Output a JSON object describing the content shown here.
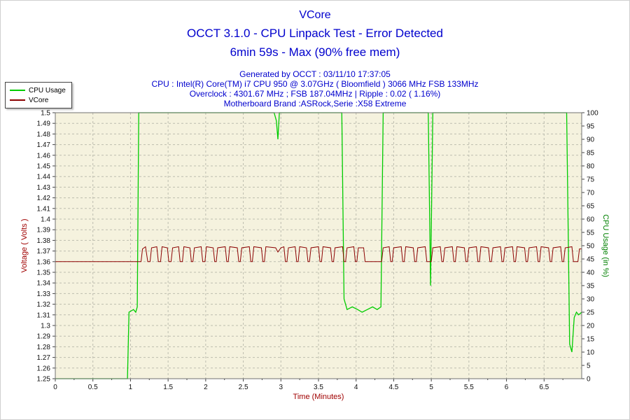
{
  "title": {
    "name": "VCore",
    "test": "OCCT 3.1.0 - CPU Linpack Test - Error Detected",
    "duration": "6min 59s - Max (90% free mem)"
  },
  "info": {
    "generated": "Generated by OCCT : 03/11/10 17:37:05",
    "cpu": "CPU : Intel(R) Core(TM) i7 CPU 950 @ 3.07GHz ( Bloomfield ) 3066 MHz FSB 133MHz",
    "overclock": "Overclock : 4301.67 MHz ; FSB 187.04MHz | Ripple : 0.02 ( 1.16%)",
    "motherboard": "Motherboard Brand :ASRock,Serie :X58 Extreme"
  },
  "legend": [
    {
      "label": "CPU Usage",
      "color": "#00cc00"
    },
    {
      "label": "VCore",
      "color": "#8b0000"
    }
  ],
  "chart_data": {
    "type": "line",
    "title": "VCore",
    "xlabel": "Time (Minutes)",
    "x_range": [
      0,
      7
    ],
    "x_tick_step": 0.5,
    "x_minor_tick_step": 0.25,
    "grid": true,
    "plot_bg": "#f5f2de",
    "grid_color": "#bdbdaf",
    "left_axis": {
      "label": "Voltage ( Volts )",
      "range": [
        1.25,
        1.5
      ],
      "tick_step": 0.01,
      "color": "#a00000"
    },
    "right_axis": {
      "label": "CPU Usage (in %)",
      "range": [
        0,
        100
      ],
      "tick_step": 5,
      "color": "#008000"
    },
    "series": [
      {
        "name": "CPU Usage",
        "axis": "right",
        "color": "#00cc00",
        "points": [
          [
            0,
            0
          ],
          [
            0.96,
            0
          ],
          [
            0.98,
            25
          ],
          [
            1.04,
            26
          ],
          [
            1.07,
            25
          ],
          [
            1.09,
            27
          ],
          [
            1.11,
            100
          ],
          [
            2.91,
            100
          ],
          [
            2.94,
            97
          ],
          [
            2.96,
            90
          ],
          [
            2.98,
            100
          ],
          [
            3.81,
            100
          ],
          [
            3.84,
            30
          ],
          [
            3.88,
            26
          ],
          [
            3.95,
            27
          ],
          [
            4.02,
            26
          ],
          [
            4.08,
            25
          ],
          [
            4.15,
            26
          ],
          [
            4.22,
            27
          ],
          [
            4.28,
            26
          ],
          [
            4.33,
            27
          ],
          [
            4.36,
            100
          ],
          [
            4.96,
            100
          ],
          [
            4.99,
            35
          ],
          [
            5.02,
            100
          ],
          [
            6.8,
            100
          ],
          [
            6.84,
            13
          ],
          [
            6.87,
            10
          ],
          [
            6.9,
            23
          ],
          [
            6.93,
            25
          ],
          [
            6.96,
            24
          ],
          [
            7.0,
            25
          ]
        ]
      },
      {
        "name": "VCore",
        "axis": "left",
        "color": "#8b0000",
        "points": [
          [
            0,
            1.36
          ],
          [
            1.14,
            1.36
          ],
          [
            1.16,
            1.372
          ],
          [
            1.2,
            1.374
          ],
          [
            1.23,
            1.36
          ],
          [
            1.26,
            1.36
          ],
          [
            1.28,
            1.373
          ],
          [
            1.35,
            1.374
          ],
          [
            1.37,
            1.36
          ],
          [
            1.4,
            1.36
          ],
          [
            1.42,
            1.374
          ],
          [
            1.49,
            1.373
          ],
          [
            1.51,
            1.36
          ],
          [
            1.54,
            1.36
          ],
          [
            1.56,
            1.373
          ],
          [
            1.64,
            1.374
          ],
          [
            1.66,
            1.36
          ],
          [
            1.69,
            1.36
          ],
          [
            1.71,
            1.374
          ],
          [
            1.79,
            1.373
          ],
          [
            1.81,
            1.36
          ],
          [
            1.83,
            1.36
          ],
          [
            1.85,
            1.373
          ],
          [
            1.94,
            1.374
          ],
          [
            1.96,
            1.36
          ],
          [
            1.99,
            1.36
          ],
          [
            2.01,
            1.374
          ],
          [
            2.1,
            1.373
          ],
          [
            2.12,
            1.36
          ],
          [
            2.14,
            1.36
          ],
          [
            2.16,
            1.373
          ],
          [
            2.26,
            1.374
          ],
          [
            2.28,
            1.36
          ],
          [
            2.3,
            1.36
          ],
          [
            2.32,
            1.374
          ],
          [
            2.42,
            1.373
          ],
          [
            2.44,
            1.36
          ],
          [
            2.46,
            1.36
          ],
          [
            2.48,
            1.373
          ],
          [
            2.58,
            1.374
          ],
          [
            2.6,
            1.36
          ],
          [
            2.62,
            1.36
          ],
          [
            2.64,
            1.374
          ],
          [
            2.74,
            1.373
          ],
          [
            2.76,
            1.36
          ],
          [
            2.78,
            1.36
          ],
          [
            2.8,
            1.374
          ],
          [
            2.93,
            1.373
          ],
          [
            2.96,
            1.369
          ],
          [
            3.0,
            1.373
          ],
          [
            3.04,
            1.374
          ],
          [
            3.06,
            1.36
          ],
          [
            3.08,
            1.36
          ],
          [
            3.1,
            1.373
          ],
          [
            3.19,
            1.374
          ],
          [
            3.21,
            1.36
          ],
          [
            3.23,
            1.36
          ],
          [
            3.25,
            1.374
          ],
          [
            3.34,
            1.373
          ],
          [
            3.36,
            1.36
          ],
          [
            3.38,
            1.36
          ],
          [
            3.4,
            1.373
          ],
          [
            3.5,
            1.374
          ],
          [
            3.52,
            1.36
          ],
          [
            3.54,
            1.36
          ],
          [
            3.56,
            1.374
          ],
          [
            3.66,
            1.373
          ],
          [
            3.68,
            1.36
          ],
          [
            3.7,
            1.36
          ],
          [
            3.72,
            1.373
          ],
          [
            3.82,
            1.374
          ],
          [
            3.84,
            1.36
          ],
          [
            3.86,
            1.36
          ],
          [
            3.88,
            1.373
          ],
          [
            3.97,
            1.374
          ],
          [
            3.99,
            1.36
          ],
          [
            4.01,
            1.36
          ],
          [
            4.03,
            1.373
          ],
          [
            4.1,
            1.373
          ],
          [
            4.12,
            1.36
          ],
          [
            4.34,
            1.36
          ],
          [
            4.36,
            1.373
          ],
          [
            4.44,
            1.374
          ],
          [
            4.46,
            1.36
          ],
          [
            4.48,
            1.36
          ],
          [
            4.5,
            1.373
          ],
          [
            4.6,
            1.374
          ],
          [
            4.62,
            1.36
          ],
          [
            4.64,
            1.36
          ],
          [
            4.66,
            1.374
          ],
          [
            4.76,
            1.373
          ],
          [
            4.78,
            1.36
          ],
          [
            4.8,
            1.36
          ],
          [
            4.82,
            1.373
          ],
          [
            4.92,
            1.374
          ],
          [
            4.94,
            1.36
          ],
          [
            5.0,
            1.36
          ],
          [
            5.02,
            1.373
          ],
          [
            5.12,
            1.374
          ],
          [
            5.14,
            1.36
          ],
          [
            5.16,
            1.36
          ],
          [
            5.18,
            1.373
          ],
          [
            5.28,
            1.374
          ],
          [
            5.3,
            1.36
          ],
          [
            5.32,
            1.36
          ],
          [
            5.34,
            1.374
          ],
          [
            5.44,
            1.373
          ],
          [
            5.46,
            1.36
          ],
          [
            5.48,
            1.36
          ],
          [
            5.5,
            1.373
          ],
          [
            5.6,
            1.374
          ],
          [
            5.62,
            1.36
          ],
          [
            5.64,
            1.36
          ],
          [
            5.66,
            1.374
          ],
          [
            5.76,
            1.373
          ],
          [
            5.78,
            1.36
          ],
          [
            5.8,
            1.36
          ],
          [
            5.82,
            1.373
          ],
          [
            5.92,
            1.374
          ],
          [
            5.94,
            1.36
          ],
          [
            5.96,
            1.36
          ],
          [
            5.98,
            1.373
          ],
          [
            6.08,
            1.374
          ],
          [
            6.1,
            1.36
          ],
          [
            6.12,
            1.36
          ],
          [
            6.14,
            1.374
          ],
          [
            6.24,
            1.373
          ],
          [
            6.26,
            1.36
          ],
          [
            6.28,
            1.36
          ],
          [
            6.3,
            1.373
          ],
          [
            6.4,
            1.374
          ],
          [
            6.42,
            1.36
          ],
          [
            6.44,
            1.36
          ],
          [
            6.46,
            1.374
          ],
          [
            6.56,
            1.373
          ],
          [
            6.58,
            1.36
          ],
          [
            6.6,
            1.36
          ],
          [
            6.62,
            1.373
          ],
          [
            6.72,
            1.374
          ],
          [
            6.74,
            1.36
          ],
          [
            6.76,
            1.36
          ],
          [
            6.78,
            1.373
          ],
          [
            6.87,
            1.374
          ],
          [
            6.89,
            1.36
          ],
          [
            6.95,
            1.36
          ],
          [
            6.97,
            1.372
          ],
          [
            7.0,
            1.372
          ]
        ]
      }
    ]
  }
}
